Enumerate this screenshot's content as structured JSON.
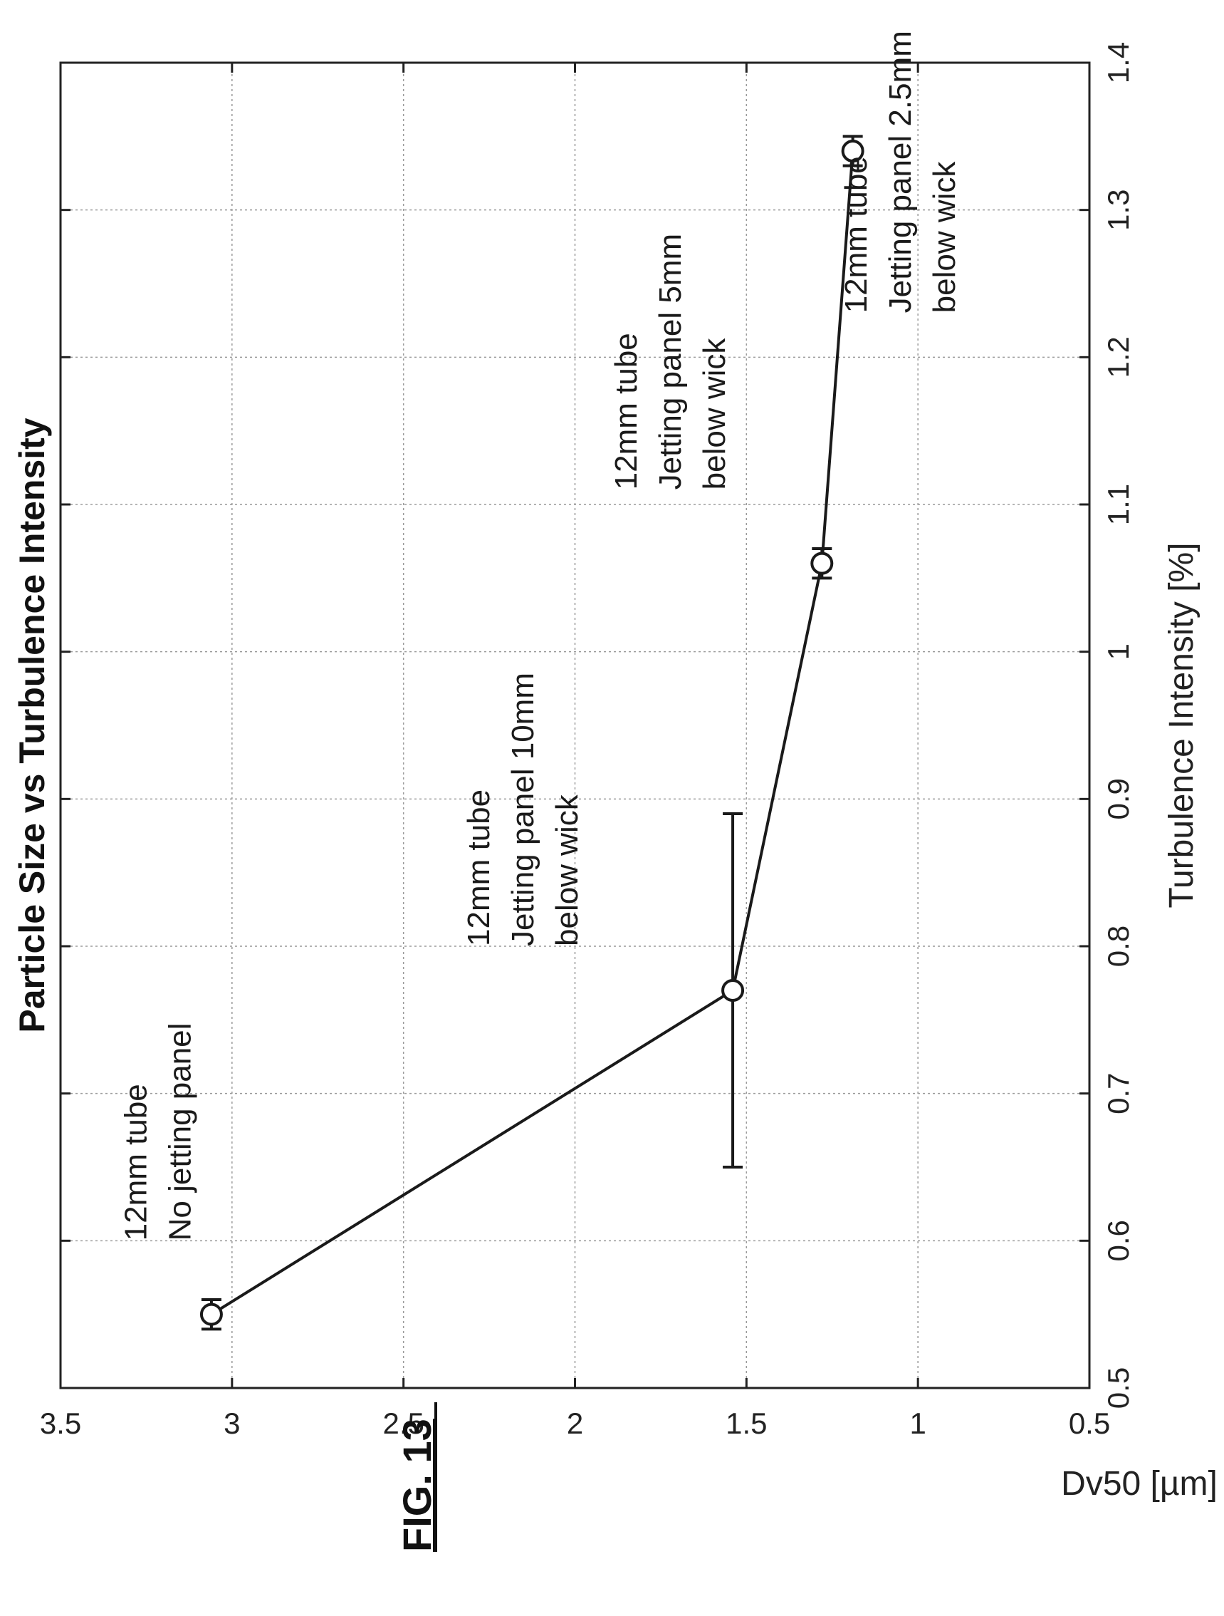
{
  "figure_label": "FIG. 13",
  "chart_data": {
    "type": "line",
    "title": "Particle Size vs Turbulence Intensity",
    "xlabel": "Turbulence Intensity [%]",
    "ylabel": "Dv50 [µm]",
    "xlim": [
      0.5,
      1.4
    ],
    "ylim": [
      0.5,
      3.5
    ],
    "xticks": [
      "0.5",
      "0.6",
      "0.7",
      "0.8",
      "0.9",
      "1",
      "1.1",
      "1.2",
      "1.3",
      "1.4"
    ],
    "yticks": [
      "0.5",
      "1",
      "1.5",
      "2",
      "2.5",
      "3",
      "3.5"
    ],
    "grid": true,
    "error_bars": "horizontal",
    "series": [
      {
        "x": [
          0.55,
          0.77,
          1.06,
          1.34
        ],
        "y": [
          3.06,
          1.54,
          1.28,
          1.19
        ],
        "x_error_low": [
          0.54,
          0.65,
          1.05,
          1.33
        ],
        "x_error_high": [
          0.56,
          0.89,
          1.07,
          1.35
        ],
        "color": "#1a1a1a"
      }
    ],
    "annotations": [
      {
        "lines": [
          "12mm tube",
          "No jetting panel"
        ],
        "x": 0.6,
        "y": 3.25
      },
      {
        "lines": [
          "12mm tube",
          "Jetting panel 10mm",
          "below wick"
        ],
        "x": 0.8,
        "y": 2.25
      },
      {
        "lines": [
          "12mm tube",
          "Jetting panel 5mm",
          "below wick"
        ],
        "x": 1.11,
        "y": 1.82
      },
      {
        "lines": [
          "12mm tube",
          "Jetting panel 2.5mm",
          "below wick"
        ],
        "x": 1.23,
        "y": 1.15
      }
    ]
  }
}
